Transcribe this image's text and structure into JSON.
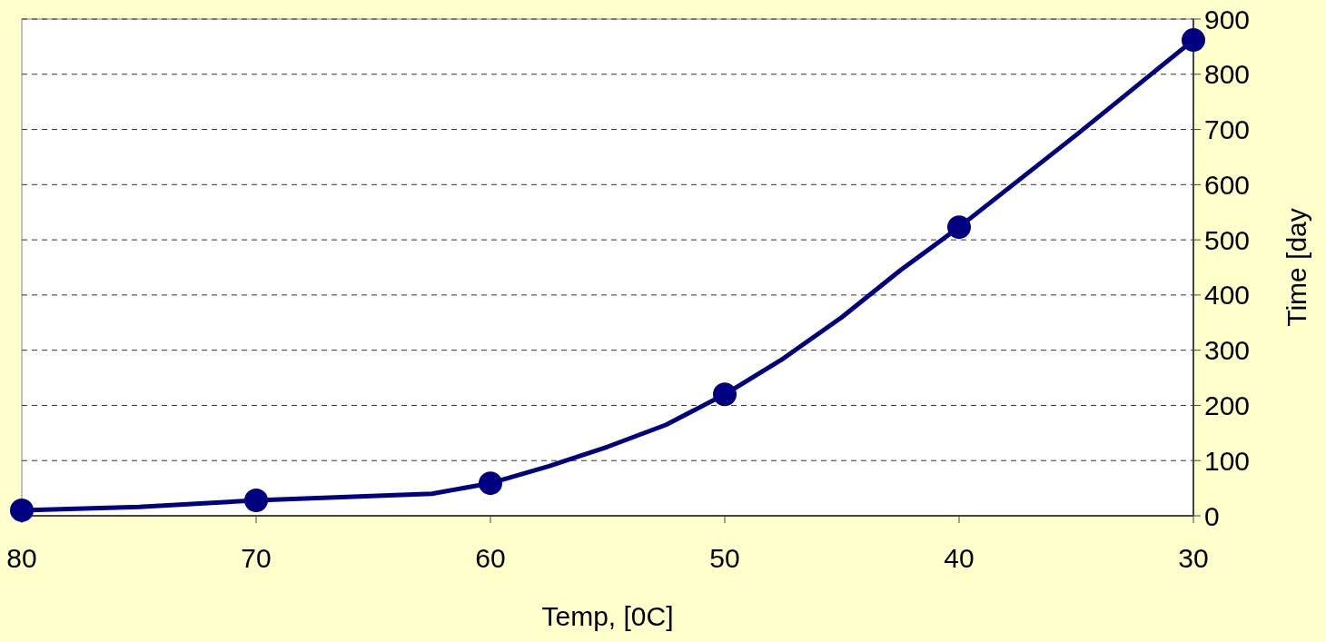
{
  "chart_data": {
    "type": "line",
    "xlabel": "Temp, [0C]",
    "ylabel": "Time [day",
    "xlim": [
      80,
      30
    ],
    "xticks": [
      80,
      70,
      60,
      50,
      40,
      30
    ],
    "ylim": [
      0,
      900
    ],
    "yticks": [
      0,
      100,
      200,
      300,
      400,
      500,
      600,
      700,
      800,
      900
    ],
    "grid": "y",
    "series": [
      {
        "color": "#000080",
        "marker": "none",
        "x": [
          80,
          75,
          70,
          62.5,
          60,
          57.5,
          55,
          52.5,
          50,
          47.5,
          45,
          42.5,
          40,
          35,
          30
        ],
        "values": [
          10,
          16,
          28,
          40,
          59,
          90,
          125,
          165,
          220,
          285,
          360,
          445,
          523,
          690,
          862
        ]
      },
      {
        "type": "scatter",
        "color": "#000080",
        "marker": "circle",
        "x": [
          80,
          70,
          60,
          50,
          40,
          30
        ],
        "values": [
          10,
          28,
          59,
          220,
          523,
          862
        ]
      }
    ]
  }
}
